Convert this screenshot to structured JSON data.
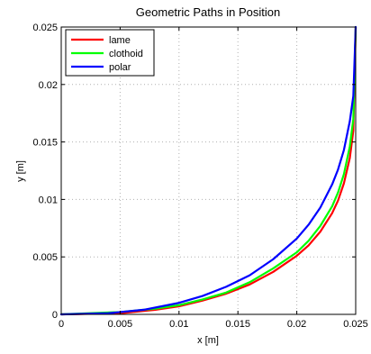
{
  "chart_data": {
    "type": "line",
    "title": "Geometric Paths in Position",
    "xlabel": "x [m]",
    "ylabel": "y [m]",
    "xlim": [
      0,
      0.025
    ],
    "ylim": [
      0,
      0.025
    ],
    "xticks": [
      0,
      0.005,
      0.01,
      0.015,
      0.02,
      0.025
    ],
    "xtick_labels": [
      "0",
      "0.005",
      "0.01",
      "0.015",
      "0.02",
      "0.025"
    ],
    "yticks": [
      0,
      0.005,
      0.01,
      0.015,
      0.02,
      0.025
    ],
    "ytick_labels": [
      "0",
      "0.005",
      "0.01",
      "0.015",
      "0.02",
      "0.025"
    ],
    "grid": true,
    "legend_position": "top-left",
    "series": [
      {
        "name": "lame",
        "color": "#ff0000",
        "x": [
          0.0,
          0.005,
          0.008,
          0.01,
          0.012,
          0.014,
          0.016,
          0.018,
          0.02,
          0.021,
          0.022,
          0.023,
          0.0235,
          0.024,
          0.0245,
          0.0248,
          0.025
        ],
        "y": [
          0.0,
          0.0001,
          0.0004,
          0.0007,
          0.0012,
          0.0018,
          0.0026,
          0.0037,
          0.0051,
          0.006,
          0.0072,
          0.0088,
          0.0099,
          0.0114,
          0.0136,
          0.016,
          0.025
        ]
      },
      {
        "name": "clothoid",
        "color": "#00ff00",
        "x": [
          0.0,
          0.005,
          0.008,
          0.01,
          0.012,
          0.014,
          0.016,
          0.018,
          0.02,
          0.021,
          0.022,
          0.023,
          0.0235,
          0.024,
          0.0245,
          0.0248,
          0.025
        ],
        "y": [
          0.0,
          0.0002,
          0.0005,
          0.0008,
          0.0013,
          0.0019,
          0.0028,
          0.004,
          0.0054,
          0.0064,
          0.0077,
          0.0094,
          0.0106,
          0.0122,
          0.0146,
          0.017,
          0.025
        ]
      },
      {
        "name": "polar",
        "color": "#0000ff",
        "x": [
          0.0,
          0.004,
          0.007,
          0.01,
          0.012,
          0.014,
          0.016,
          0.018,
          0.02,
          0.021,
          0.022,
          0.023,
          0.0235,
          0.024,
          0.0245,
          0.0248,
          0.025
        ],
        "y": [
          0.0,
          0.0001,
          0.0004,
          0.001,
          0.0016,
          0.0024,
          0.0034,
          0.0048,
          0.0066,
          0.0078,
          0.0093,
          0.0113,
          0.0126,
          0.0143,
          0.0168,
          0.019,
          0.025
        ]
      }
    ]
  }
}
